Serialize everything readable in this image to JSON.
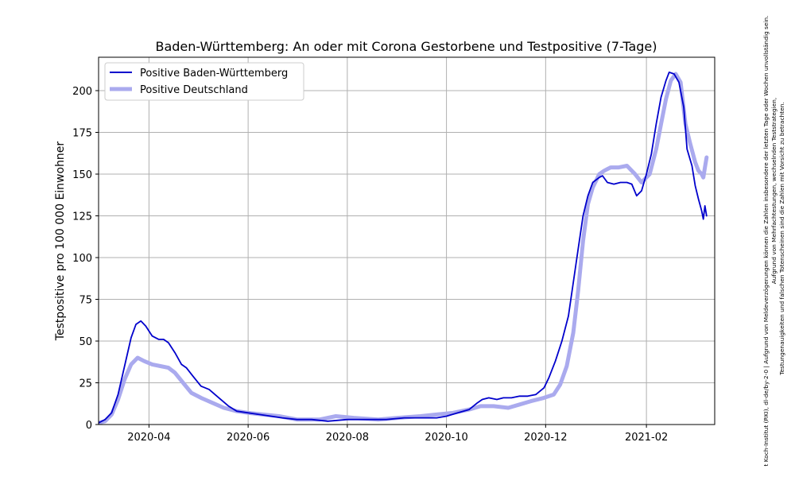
{
  "chart_data": {
    "type": "line",
    "title": "Baden-Württemberg: An oder mit Corona Gestorbene und Testpositive (7-Tage)",
    "xlabel": "",
    "ylabel": "Testpositive pro 100 000 Einwohner",
    "xlim": [
      "2020-03-01",
      "2021-03-15"
    ],
    "ylim": [
      0,
      220
    ],
    "x_ticks": [
      "2020-04",
      "2020-06",
      "2020-08",
      "2020-10",
      "2020-12",
      "2021-02"
    ],
    "y_ticks": [
      0,
      25,
      50,
      75,
      100,
      125,
      150,
      175,
      200
    ],
    "grid": true,
    "legend_position": "top-left",
    "series": [
      {
        "name": "Positive Baden-Württemberg",
        "color": "#0000cc",
        "points": [
          [
            "2020-03-01",
            1
          ],
          [
            "2020-03-05",
            3
          ],
          [
            "2020-03-09",
            7
          ],
          [
            "2020-03-13",
            18
          ],
          [
            "2020-03-17",
            35
          ],
          [
            "2020-03-21",
            52
          ],
          [
            "2020-03-24",
            60
          ],
          [
            "2020-03-27",
            62
          ],
          [
            "2020-03-30",
            59
          ],
          [
            "2020-04-03",
            53
          ],
          [
            "2020-04-07",
            51
          ],
          [
            "2020-04-10",
            51
          ],
          [
            "2020-04-13",
            49
          ],
          [
            "2020-04-17",
            43
          ],
          [
            "2020-04-21",
            36
          ],
          [
            "2020-04-24",
            34
          ],
          [
            "2020-04-28",
            29
          ],
          [
            "2020-05-03",
            23
          ],
          [
            "2020-05-08",
            21
          ],
          [
            "2020-05-14",
            16
          ],
          [
            "2020-05-20",
            11
          ],
          [
            "2020-05-25",
            8
          ],
          [
            "2020-06-01",
            7
          ],
          [
            "2020-06-08",
            6
          ],
          [
            "2020-06-15",
            5
          ],
          [
            "2020-06-22",
            4
          ],
          [
            "2020-07-01",
            3
          ],
          [
            "2020-07-10",
            3
          ],
          [
            "2020-07-20",
            2
          ],
          [
            "2020-08-01",
            3
          ],
          [
            "2020-08-15",
            3
          ],
          [
            "2020-08-25",
            3
          ],
          [
            "2020-09-05",
            4
          ],
          [
            "2020-09-15",
            4
          ],
          [
            "2020-09-25",
            4
          ],
          [
            "2020-10-01",
            5
          ],
          [
            "2020-10-08",
            7
          ],
          [
            "2020-10-15",
            9
          ],
          [
            "2020-10-20",
            13
          ],
          [
            "2020-10-23",
            15
          ],
          [
            "2020-10-27",
            16
          ],
          [
            "2020-11-01",
            15
          ],
          [
            "2020-11-05",
            16
          ],
          [
            "2020-11-10",
            16
          ],
          [
            "2020-11-15",
            17
          ],
          [
            "2020-11-20",
            17
          ],
          [
            "2020-11-25",
            18
          ],
          [
            "2020-11-30",
            22
          ],
          [
            "2020-12-03",
            28
          ],
          [
            "2020-12-07",
            38
          ],
          [
            "2020-12-11",
            50
          ],
          [
            "2020-12-15",
            65
          ],
          [
            "2020-12-18",
            85
          ],
          [
            "2020-12-21",
            105
          ],
          [
            "2020-12-24",
            125
          ],
          [
            "2020-12-27",
            137
          ],
          [
            "2020-12-30",
            145
          ],
          [
            "2021-01-03",
            148
          ],
          [
            "2021-01-05",
            149
          ],
          [
            "2021-01-08",
            145
          ],
          [
            "2021-01-12",
            144
          ],
          [
            "2021-01-16",
            145
          ],
          [
            "2021-01-20",
            145
          ],
          [
            "2021-01-23",
            144
          ],
          [
            "2021-01-26",
            137
          ],
          [
            "2021-01-29",
            140
          ],
          [
            "2021-02-01",
            150
          ],
          [
            "2021-02-04",
            162
          ],
          [
            "2021-02-07",
            180
          ],
          [
            "2021-02-10",
            196
          ],
          [
            "2021-02-13",
            206
          ],
          [
            "2021-02-15",
            211
          ],
          [
            "2021-02-18",
            210
          ],
          [
            "2021-02-21",
            205
          ],
          [
            "2021-02-24",
            190
          ],
          [
            "2021-02-26",
            165
          ],
          [
            "2021-03-01",
            155
          ],
          [
            "2021-03-03",
            143
          ],
          [
            "2021-03-05",
            135
          ],
          [
            "2021-03-07",
            128
          ],
          [
            "2021-03-08",
            123
          ],
          [
            "2021-03-09",
            131
          ],
          [
            "2021-03-10",
            125
          ]
        ]
      },
      {
        "name": "Positive Deutschland",
        "color": "#aaaaee",
        "points": [
          [
            "2020-03-01",
            1
          ],
          [
            "2020-03-05",
            2
          ],
          [
            "2020-03-09",
            6
          ],
          [
            "2020-03-13",
            15
          ],
          [
            "2020-03-17",
            27
          ],
          [
            "2020-03-21",
            36
          ],
          [
            "2020-03-25",
            40
          ],
          [
            "2020-03-29",
            38
          ],
          [
            "2020-04-03",
            36
          ],
          [
            "2020-04-08",
            35
          ],
          [
            "2020-04-13",
            34
          ],
          [
            "2020-04-17",
            31
          ],
          [
            "2020-04-22",
            25
          ],
          [
            "2020-04-27",
            19
          ],
          [
            "2020-05-03",
            16
          ],
          [
            "2020-05-10",
            13
          ],
          [
            "2020-05-17",
            10
          ],
          [
            "2020-05-25",
            8
          ],
          [
            "2020-06-01",
            7
          ],
          [
            "2020-06-10",
            6
          ],
          [
            "2020-06-20",
            5
          ],
          [
            "2020-07-01",
            3
          ],
          [
            "2020-07-15",
            3
          ],
          [
            "2020-07-25",
            5
          ],
          [
            "2020-08-05",
            4
          ],
          [
            "2020-08-20",
            3
          ],
          [
            "2020-09-01",
            4
          ],
          [
            "2020-09-15",
            5
          ],
          [
            "2020-09-25",
            6
          ],
          [
            "2020-10-05",
            7
          ],
          [
            "2020-10-15",
            9
          ],
          [
            "2020-10-22",
            11
          ],
          [
            "2020-10-30",
            11
          ],
          [
            "2020-11-08",
            10
          ],
          [
            "2020-11-15",
            12
          ],
          [
            "2020-11-22",
            14
          ],
          [
            "2020-11-30",
            16
          ],
          [
            "2020-12-06",
            18
          ],
          [
            "2020-12-10",
            24
          ],
          [
            "2020-12-14",
            35
          ],
          [
            "2020-12-18",
            55
          ],
          [
            "2020-12-21",
            80
          ],
          [
            "2020-12-24",
            110
          ],
          [
            "2020-12-27",
            132
          ],
          [
            "2020-12-30",
            142
          ],
          [
            "2021-01-03",
            150
          ],
          [
            "2021-01-06",
            152
          ],
          [
            "2021-01-10",
            154
          ],
          [
            "2021-01-15",
            154
          ],
          [
            "2021-01-20",
            155
          ],
          [
            "2021-01-25",
            150
          ],
          [
            "2021-01-29",
            145
          ],
          [
            "2021-02-03",
            150
          ],
          [
            "2021-02-07",
            165
          ],
          [
            "2021-02-10",
            180
          ],
          [
            "2021-02-13",
            195
          ],
          [
            "2021-02-16",
            206
          ],
          [
            "2021-02-19",
            210
          ],
          [
            "2021-02-22",
            205
          ],
          [
            "2021-02-25",
            180
          ],
          [
            "2021-02-28",
            168
          ],
          [
            "2021-03-03",
            157
          ],
          [
            "2021-03-05",
            152
          ],
          [
            "2021-03-07",
            150
          ],
          [
            "2021-03-08",
            148
          ],
          [
            "2021-03-09",
            154
          ],
          [
            "2021-03-10",
            160
          ]
        ]
      }
    ]
  },
  "attribution": {
    "line1": "t Koch-Institut (RKI), dl-de/by-2-0 | Aufgrund von Meldeverzögerungen können die Zahlen insbesondere der letzten Tage oder Wochen unvollständig sein.",
    "line2": "Aufgrund von Mehrfachtestungen, wechselnden Teststrategien,",
    "line3": "Testungenauigkeiten und falschen Totenscheinen sind die Zahlen mit Vorsicht zu betrachten."
  }
}
